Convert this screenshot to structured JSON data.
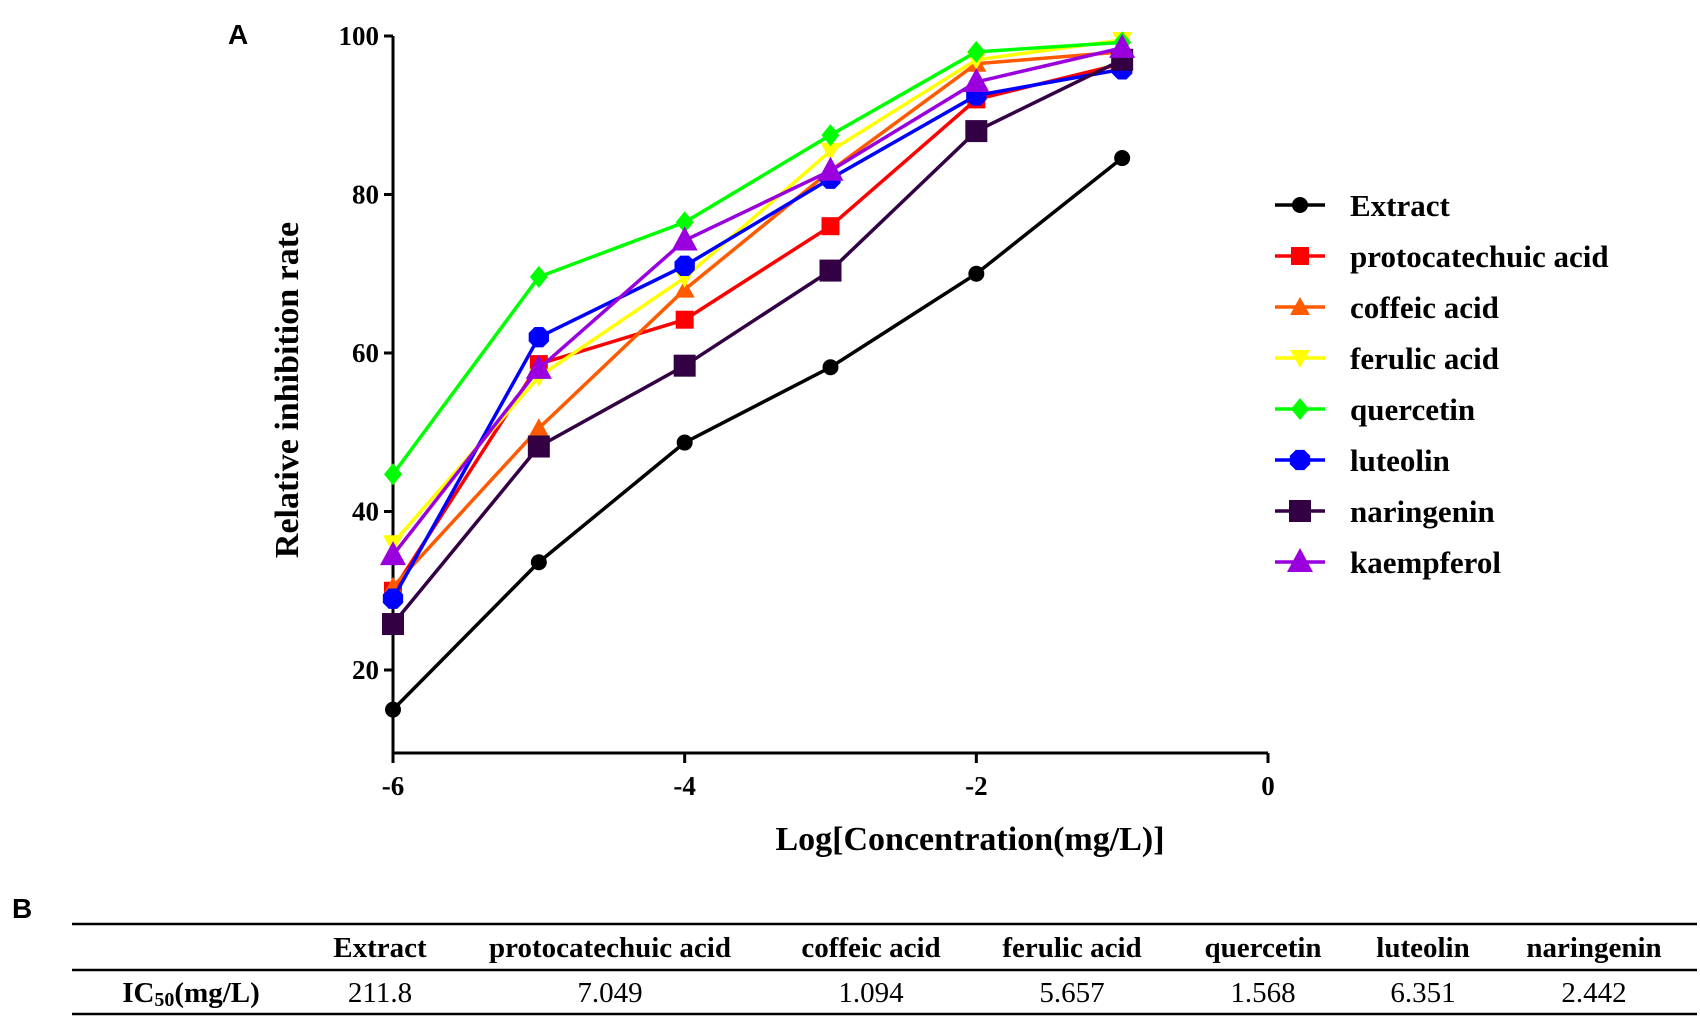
{
  "panel_a_label": "A",
  "panel_b_label": "B",
  "chart_data": {
    "type": "line",
    "title": "",
    "xlabel": "Log[Concentration(mg/L)]",
    "ylabel": "Relative inhibition rate",
    "x": [
      -6,
      -5,
      -4,
      -3,
      -2,
      -1
    ],
    "xlim": [
      -6,
      0
    ],
    "ylim": [
      9.5,
      100
    ],
    "xticks": [
      -6,
      -4,
      -2,
      0
    ],
    "yticks": [
      20,
      40,
      60,
      80,
      100
    ],
    "grid": false,
    "legend_position": "right",
    "series": [
      {
        "name": "Extract",
        "color": "#000000",
        "marker": "circle",
        "values": [
          15,
          33.6,
          48.7,
          58.2,
          70,
          84.6
        ]
      },
      {
        "name": "protocatechuic acid",
        "color": "#ff0000",
        "marker": "square",
        "values": [
          30,
          58.6,
          64.2,
          76,
          92,
          96.5
        ]
      },
      {
        "name": "coffeic acid",
        "color": "#ff5a00",
        "marker": "triangle",
        "values": [
          30.5,
          50.5,
          68,
          83,
          96.5,
          98
        ]
      },
      {
        "name": "ferulic acid",
        "color": "#ffff00",
        "marker": "triangle-down",
        "values": [
          36,
          57,
          69.5,
          85.5,
          97,
          99.5
        ]
      },
      {
        "name": "quercetin",
        "color": "#00ff00",
        "marker": "diamond",
        "values": [
          44.7,
          69.6,
          76.5,
          87.5,
          98,
          99.2
        ]
      },
      {
        "name": "luteolin",
        "color": "#0000ff",
        "marker": "octagon",
        "values": [
          29,
          62,
          71,
          82,
          92.5,
          95.8
        ]
      },
      {
        "name": "naringenin",
        "color": "#330044",
        "marker": "big-square",
        "values": [
          25.8,
          48.2,
          58.4,
          70.4,
          88,
          97
        ]
      },
      {
        "name": "kaempferol",
        "color": "#9900dd",
        "marker": "big-triangle",
        "values": [
          34.5,
          58,
          74.2,
          83,
          94.2,
          98.5
        ]
      }
    ]
  },
  "table": {
    "headers": [
      "",
      "Extract",
      "protocatechuic acid",
      "coffeic acid",
      "ferulic acid",
      "quercetin",
      "luteolin",
      "naringenin"
    ],
    "row_label_main": "IC",
    "row_label_sub": "50",
    "row_label_unit": "(mg/L)",
    "values": [
      "211.8",
      "7.049",
      "1.094",
      "5.657",
      "1.568",
      "6.351",
      "2.442"
    ]
  }
}
